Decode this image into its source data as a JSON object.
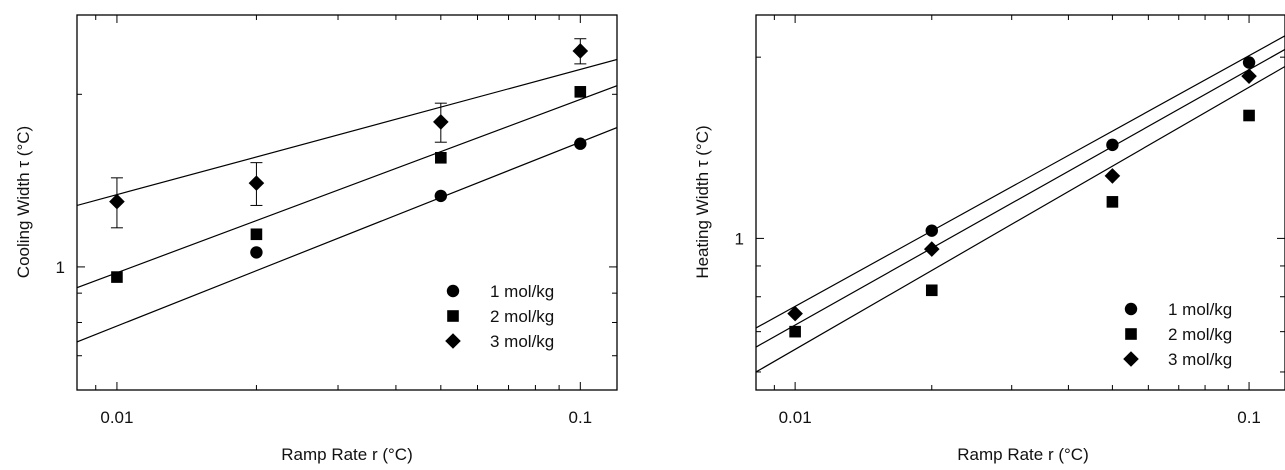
{
  "chart_data": [
    {
      "type": "scatter",
      "xlabel": "Ramp Rate r (°C)",
      "ylabel": "Cooling Width τ (°C)",
      "xscale": "log",
      "yscale": "log",
      "xlim": [
        0.0082,
        0.12
      ],
      "ylim": [
        0.61,
        2.75
      ],
      "x_ticklabels": [
        {
          "value": 0.01,
          "label": "0.01"
        },
        {
          "value": 0.1,
          "label": "0.1"
        }
      ],
      "y_ticklabels": [
        {
          "value": 1,
          "label": "1"
        }
      ],
      "legend_position": "bottom-right",
      "series": [
        {
          "name": "1 mol/kg",
          "marker": "circle",
          "x": [
            0.01,
            0.02,
            0.05,
            0.1
          ],
          "y": [
            null,
            1.06,
            1.33,
            1.64
          ],
          "fit": {
            "x": [
              0.0082,
              0.12
            ],
            "y": [
              0.74,
              1.75
            ]
          }
        },
        {
          "name": "2 mol/kg",
          "marker": "square",
          "x": [
            0.01,
            0.02,
            0.05,
            0.1
          ],
          "y": [
            0.96,
            1.14,
            1.55,
            2.02
          ],
          "fit": {
            "x": [
              0.0082,
              0.12
            ],
            "y": [
              0.92,
              2.07
            ]
          }
        },
        {
          "name": "3 mol/kg",
          "marker": "diamond",
          "x": [
            0.01,
            0.02,
            0.05,
            0.1
          ],
          "y": [
            1.3,
            1.4,
            1.79,
            2.38
          ],
          "yerr": [
            0.13,
            0.12,
            0.14,
            0.12
          ],
          "fit": {
            "x": [
              0.0082,
              0.12
            ],
            "y": [
              1.28,
              2.3
            ]
          }
        }
      ]
    },
    {
      "type": "scatter",
      "xlabel": "Ramp Rate r (°C)",
      "ylabel": "Heating Width τ (°C)",
      "xscale": "log",
      "yscale": "log",
      "xlim": [
        0.0082,
        0.12
      ],
      "ylim": [
        0.56,
        2.35
      ],
      "x_ticklabels": [
        {
          "value": 0.01,
          "label": "0.01"
        },
        {
          "value": 0.1,
          "label": "0.1"
        }
      ],
      "y_ticklabels": [
        {
          "value": 1,
          "label": "1"
        }
      ],
      "legend_position": "bottom-right",
      "series": [
        {
          "name": "1 mol/kg",
          "marker": "circle",
          "x": [
            0.01,
            0.02,
            0.05,
            0.1
          ],
          "y": [
            null,
            1.03,
            1.43,
            1.96
          ],
          "fit": {
            "x": [
              0.0082,
              0.12
            ],
            "y": [
              0.71,
              2.17
            ]
          }
        },
        {
          "name": "2 mol/kg",
          "marker": "square",
          "x": [
            0.01,
            0.02,
            0.05,
            0.1
          ],
          "y": [
            0.7,
            0.82,
            1.15,
            1.6
          ],
          "fit": {
            "x": [
              0.0082,
              0.12
            ],
            "y": [
              0.6,
              1.93
            ]
          }
        },
        {
          "name": "3 mol/kg",
          "marker": "diamond",
          "x": [
            0.01,
            0.02,
            0.05,
            0.1
          ],
          "y": [
            0.75,
            0.96,
            1.27,
            1.86
          ],
          "fit": {
            "x": [
              0.0082,
              0.12
            ],
            "y": [
              0.66,
              2.06
            ]
          }
        }
      ]
    }
  ]
}
